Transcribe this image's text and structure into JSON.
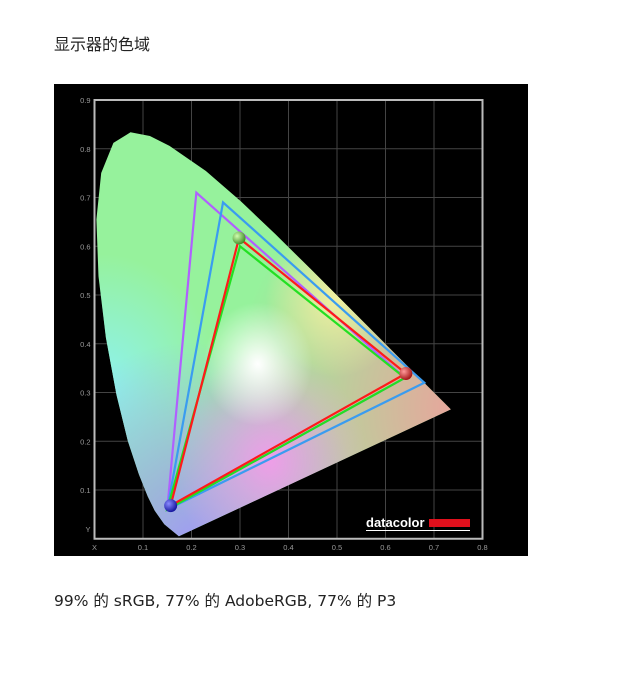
{
  "title": "显示器的色域",
  "caption": "99% 的 sRGB, 77% 的 AdobeRGB, 77% 的 P3",
  "chart_data": {
    "type": "scatter",
    "subtype": "CIE 1931 xy chromaticity diagram",
    "xlabel": "X",
    "ylabel": "Y",
    "xlim": [
      0,
      0.8
    ],
    "ylim": [
      0,
      0.9
    ],
    "x_ticks": [
      "X",
      "0.1",
      "0.2",
      "0.3",
      "0.4",
      "0.5",
      "0.6",
      "0.7",
      "0.8"
    ],
    "y_ticks": [
      "Y",
      "0.1",
      "0.2",
      "0.3",
      "0.4",
      "0.5",
      "0.6",
      "0.7",
      "0.8",
      "0.9"
    ],
    "grid": true,
    "logo": "datacolor",
    "gamuts": [
      {
        "color": "#b060ff",
        "points": [
          [
            0.64,
            0.33
          ],
          [
            0.21,
            0.71
          ],
          [
            0.15,
            0.06
          ]
        ]
      },
      {
        "color": "#3a9cf0",
        "points": [
          [
            0.68,
            0.32
          ],
          [
            0.265,
            0.69
          ],
          [
            0.15,
            0.06
          ]
        ]
      },
      {
        "color": "#22e022",
        "points": [
          [
            0.64,
            0.33
          ],
          [
            0.3,
            0.6
          ],
          [
            0.15,
            0.06
          ]
        ]
      },
      {
        "color": "#ff1a1a",
        "points": [
          [
            0.642,
            0.339
          ],
          [
            0.298,
            0.617
          ],
          [
            0.157,
            0.068
          ]
        ]
      }
    ],
    "measured_primaries": [
      {
        "name": "red",
        "color": "#d02020",
        "x": 0.642,
        "y": 0.339
      },
      {
        "name": "green",
        "color": "#5cc040",
        "x": 0.298,
        "y": 0.617
      },
      {
        "name": "blue",
        "color": "#1a1ad0",
        "x": 0.157,
        "y": 0.068
      }
    ]
  }
}
